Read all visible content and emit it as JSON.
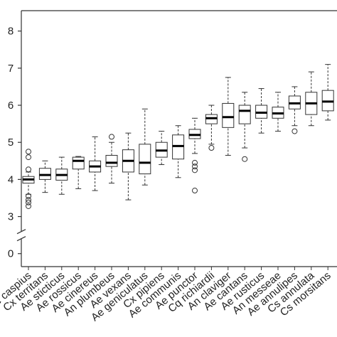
{
  "chart_data": {
    "type": "box",
    "categories": [
      "Ae caspius",
      "Cx territans",
      "Ae sticticus",
      "Ae rossicus",
      "Ae cinereus",
      "An plumbeus",
      "Ae vexans",
      "Ae geniculatus",
      "Cx pipiens",
      "Ae communis",
      "Ae punctor",
      "Cq richiardii",
      "An claviger",
      "Ae cantans",
      "Ae rusticus",
      "An messeae",
      "Ae annulipes",
      "Cs annulata",
      "Cs morsitans"
    ],
    "boxes": [
      {
        "low": 3.6,
        "q1": 3.9,
        "median": 4.0,
        "q3": 4.08,
        "high": 4.2,
        "outliers": [
          4.75,
          4.6,
          4.27,
          3.55,
          3.45,
          3.38,
          3.28
        ]
      },
      {
        "low": 3.65,
        "q1": 4.0,
        "median": 4.12,
        "q3": 4.3,
        "high": 4.5,
        "outliers": []
      },
      {
        "low": 3.6,
        "q1": 3.98,
        "median": 4.12,
        "q3": 4.28,
        "high": 4.6,
        "outliers": []
      },
      {
        "low": 3.75,
        "q1": 4.28,
        "median": 4.5,
        "q3": 4.6,
        "high": 4.62,
        "outliers": []
      },
      {
        "low": 3.7,
        "q1": 4.2,
        "median": 4.35,
        "q3": 4.5,
        "high": 5.15,
        "outliers": []
      },
      {
        "low": 3.9,
        "q1": 4.35,
        "median": 4.45,
        "q3": 4.65,
        "high": 5.0,
        "outliers": [
          5.15
        ]
      },
      {
        "low": 3.45,
        "q1": 4.2,
        "median": 4.5,
        "q3": 4.8,
        "high": 5.25,
        "outliers": []
      },
      {
        "low": 3.85,
        "q1": 4.15,
        "median": 4.45,
        "q3": 4.95,
        "high": 5.9,
        "outliers": []
      },
      {
        "low": 4.4,
        "q1": 4.6,
        "median": 4.78,
        "q3": 5.0,
        "high": 5.3,
        "outliers": []
      },
      {
        "low": 4.05,
        "q1": 4.55,
        "median": 4.9,
        "q3": 5.2,
        "high": 5.45,
        "outliers": []
      },
      {
        "low": 4.7,
        "q1": 5.1,
        "median": 5.2,
        "q3": 5.35,
        "high": 5.65,
        "outliers": [
          4.45,
          4.35,
          4.25,
          3.7
        ]
      },
      {
        "low": 4.95,
        "q1": 5.5,
        "median": 5.65,
        "q3": 5.75,
        "high": 6.0,
        "outliers": [
          4.85
        ]
      },
      {
        "low": 4.65,
        "q1": 5.4,
        "median": 5.68,
        "q3": 6.05,
        "high": 6.75,
        "outliers": []
      },
      {
        "low": 4.85,
        "q1": 5.5,
        "median": 5.85,
        "q3": 6.0,
        "high": 6.35,
        "outliers": [
          4.55
        ]
      },
      {
        "low": 5.25,
        "q1": 5.65,
        "median": 5.8,
        "q3": 6.0,
        "high": 6.45,
        "outliers": []
      },
      {
        "low": 5.3,
        "q1": 5.65,
        "median": 5.78,
        "q3": 5.95,
        "high": 6.35,
        "outliers": []
      },
      {
        "low": 5.45,
        "q1": 5.9,
        "median": 6.05,
        "q3": 6.25,
        "high": 6.5,
        "outliers": [
          5.3
        ]
      },
      {
        "low": 5.45,
        "q1": 5.75,
        "median": 6.05,
        "q3": 6.35,
        "high": 6.9,
        "outliers": []
      },
      {
        "low": 5.6,
        "q1": 5.85,
        "median": 6.1,
        "q3": 6.4,
        "high": 7.1,
        "outliers": []
      }
    ],
    "ylim": [
      -0.35,
      8.55
    ],
    "yticks": [
      0,
      3,
      4,
      5,
      6,
      7,
      8
    ],
    "axis_break": [
      0.5,
      2.5
    ]
  }
}
